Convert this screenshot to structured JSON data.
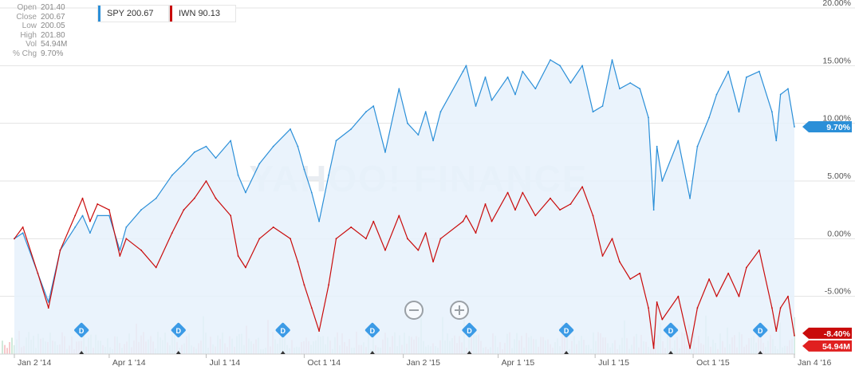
{
  "ohlc": [
    {
      "label": "Open",
      "value": "201.40"
    },
    {
      "label": "Close",
      "value": "200.67"
    },
    {
      "label": "Low",
      "value": "200.05"
    },
    {
      "label": "High",
      "value": "201.80"
    },
    {
      "label": "Vol",
      "value": "54.94M"
    },
    {
      "label": "% Chg",
      "value": "9.70%"
    }
  ],
  "legend": {
    "spy": {
      "label": "SPY 200.67",
      "color": "#2b8fd8"
    },
    "iwn": {
      "label": "IWN 90.13",
      "color": "#c90b0b"
    }
  },
  "markers": {
    "spy_last": "9.70%",
    "iwn_last": "-8.40%",
    "volume_last": "54.94M"
  },
  "event_marker_label": "D",
  "chart_data": {
    "type": "line",
    "x_labels": [
      "Jan 2 '14",
      "Apr 1 '14",
      "Jul 1 '14",
      "Oct 1 '14",
      "Jan 2 '15",
      "Apr 1 '15",
      "Jul 1 '15",
      "Oct 1 '15",
      "Jan 4 '16"
    ],
    "y_ticks": [
      "20.00%",
      "15.00%",
      "10.00%",
      "5.00%",
      "0.00%",
      "-5.00%"
    ],
    "ylim": [
      -10,
      20
    ],
    "y_unit": "% change",
    "series": [
      {
        "name": "SPY",
        "color": "#2b8fd8",
        "area": true,
        "points": [
          [
            "2014-01-02",
            0
          ],
          [
            "2014-01-10",
            0.5
          ],
          [
            "2014-01-24",
            -3
          ],
          [
            "2014-02-03",
            -5.5
          ],
          [
            "2014-02-14",
            -1
          ],
          [
            "2014-02-28",
            1
          ],
          [
            "2014-03-07",
            2
          ],
          [
            "2014-03-14",
            0.5
          ],
          [
            "2014-03-21",
            2
          ],
          [
            "2014-04-01",
            2
          ],
          [
            "2014-04-11",
            -1
          ],
          [
            "2014-04-17",
            1
          ],
          [
            "2014-05-01",
            2.5
          ],
          [
            "2014-05-15",
            3.5
          ],
          [
            "2014-05-30",
            5.5
          ],
          [
            "2014-06-10",
            6.5
          ],
          [
            "2014-06-20",
            7.5
          ],
          [
            "2014-07-01",
            8
          ],
          [
            "2014-07-10",
            7
          ],
          [
            "2014-07-24",
            8.5
          ],
          [
            "2014-07-31",
            5.5
          ],
          [
            "2014-08-07",
            4
          ],
          [
            "2014-08-20",
            6.5
          ],
          [
            "2014-09-02",
            8
          ],
          [
            "2014-09-18",
            9.5
          ],
          [
            "2014-09-25",
            8
          ],
          [
            "2014-10-01",
            6
          ],
          [
            "2014-10-08",
            4
          ],
          [
            "2014-10-15",
            1.5
          ],
          [
            "2014-10-24",
            5.5
          ],
          [
            "2014-10-31",
            8.5
          ],
          [
            "2014-11-14",
            9.5
          ],
          [
            "2014-11-28",
            11
          ],
          [
            "2014-12-05",
            11.5
          ],
          [
            "2014-12-16",
            7.5
          ],
          [
            "2014-12-29",
            13
          ],
          [
            "2015-01-06",
            10
          ],
          [
            "2015-01-16",
            9
          ],
          [
            "2015-01-23",
            11
          ],
          [
            "2015-01-30",
            8.5
          ],
          [
            "2015-02-06",
            11
          ],
          [
            "2015-02-27",
            14.5
          ],
          [
            "2015-03-02",
            15
          ],
          [
            "2015-03-11",
            11.5
          ],
          [
            "2015-03-20",
            14
          ],
          [
            "2015-03-26",
            12
          ],
          [
            "2015-04-10",
            14
          ],
          [
            "2015-04-17",
            12.5
          ],
          [
            "2015-04-24",
            14.5
          ],
          [
            "2015-05-06",
            13
          ],
          [
            "2015-05-20",
            15.5
          ],
          [
            "2015-05-29",
            15
          ],
          [
            "2015-06-08",
            13.5
          ],
          [
            "2015-06-19",
            15
          ],
          [
            "2015-06-29",
            11
          ],
          [
            "2015-07-08",
            11.5
          ],
          [
            "2015-07-17",
            15.5
          ],
          [
            "2015-07-24",
            13
          ],
          [
            "2015-08-03",
            13.5
          ],
          [
            "2015-08-12",
            13
          ],
          [
            "2015-08-20",
            10.5
          ],
          [
            "2015-08-25",
            2.5
          ],
          [
            "2015-08-28",
            8
          ],
          [
            "2015-09-02",
            5
          ],
          [
            "2015-09-17",
            8.5
          ],
          [
            "2015-09-28",
            3.5
          ],
          [
            "2015-10-05",
            8
          ],
          [
            "2015-10-16",
            10.5
          ],
          [
            "2015-10-23",
            12.5
          ],
          [
            "2015-11-03",
            14.5
          ],
          [
            "2015-11-13",
            11
          ],
          [
            "2015-11-20",
            14
          ],
          [
            "2015-12-02",
            14.5
          ],
          [
            "2015-12-14",
            11
          ],
          [
            "2015-12-18",
            8.5
          ],
          [
            "2015-12-22",
            12.5
          ],
          [
            "2015-12-29",
            13
          ],
          [
            "2016-01-04",
            9.7
          ]
        ]
      },
      {
        "name": "IWN",
        "color": "#c90b0b",
        "area": false,
        "points": [
          [
            "2014-01-02",
            0
          ],
          [
            "2014-01-10",
            1
          ],
          [
            "2014-01-24",
            -3
          ],
          [
            "2014-02-03",
            -6
          ],
          [
            "2014-02-14",
            -1
          ],
          [
            "2014-02-28",
            2
          ],
          [
            "2014-03-07",
            3.5
          ],
          [
            "2014-03-14",
            1.5
          ],
          [
            "2014-03-21",
            3
          ],
          [
            "2014-04-01",
            2.5
          ],
          [
            "2014-04-11",
            -1.5
          ],
          [
            "2014-04-17",
            0
          ],
          [
            "2014-05-01",
            -1
          ],
          [
            "2014-05-15",
            -2.5
          ],
          [
            "2014-05-30",
            0.5
          ],
          [
            "2014-06-10",
            2.5
          ],
          [
            "2014-06-20",
            3.5
          ],
          [
            "2014-07-01",
            5
          ],
          [
            "2014-07-10",
            3.5
          ],
          [
            "2014-07-24",
            2
          ],
          [
            "2014-07-31",
            -1.5
          ],
          [
            "2014-08-07",
            -2.5
          ],
          [
            "2014-08-20",
            0
          ],
          [
            "2014-09-02",
            1
          ],
          [
            "2014-09-18",
            0
          ],
          [
            "2014-09-25",
            -2
          ],
          [
            "2014-10-01",
            -4
          ],
          [
            "2014-10-08",
            -6
          ],
          [
            "2014-10-15",
            -8
          ],
          [
            "2014-10-24",
            -4
          ],
          [
            "2014-10-31",
            0
          ],
          [
            "2014-11-14",
            1
          ],
          [
            "2014-11-28",
            0
          ],
          [
            "2014-12-05",
            1.5
          ],
          [
            "2014-12-16",
            -1
          ],
          [
            "2014-12-29",
            2
          ],
          [
            "2015-01-06",
            0
          ],
          [
            "2015-01-16",
            -1
          ],
          [
            "2015-01-23",
            0.5
          ],
          [
            "2015-01-30",
            -2
          ],
          [
            "2015-02-06",
            0
          ],
          [
            "2015-02-27",
            1.5
          ],
          [
            "2015-03-02",
            2
          ],
          [
            "2015-03-11",
            0.5
          ],
          [
            "2015-03-20",
            3
          ],
          [
            "2015-03-26",
            1.5
          ],
          [
            "2015-04-10",
            4
          ],
          [
            "2015-04-17",
            2.5
          ],
          [
            "2015-04-24",
            4
          ],
          [
            "2015-05-06",
            2
          ],
          [
            "2015-05-20",
            3.5
          ],
          [
            "2015-05-29",
            2.5
          ],
          [
            "2015-06-08",
            3
          ],
          [
            "2015-06-19",
            4.5
          ],
          [
            "2015-06-29",
            2
          ],
          [
            "2015-07-08",
            -1.5
          ],
          [
            "2015-07-17",
            0
          ],
          [
            "2015-07-24",
            -2
          ],
          [
            "2015-08-03",
            -3.5
          ],
          [
            "2015-08-12",
            -3
          ],
          [
            "2015-08-20",
            -6
          ],
          [
            "2015-08-25",
            -9.5
          ],
          [
            "2015-08-28",
            -5.5
          ],
          [
            "2015-09-02",
            -7
          ],
          [
            "2015-09-17",
            -5
          ],
          [
            "2015-09-28",
            -9.5
          ],
          [
            "2015-10-05",
            -6
          ],
          [
            "2015-10-16",
            -3.5
          ],
          [
            "2015-10-23",
            -5
          ],
          [
            "2015-11-03",
            -3
          ],
          [
            "2015-11-13",
            -5
          ],
          [
            "2015-11-20",
            -2.5
          ],
          [
            "2015-12-02",
            -1
          ],
          [
            "2015-12-14",
            -6
          ],
          [
            "2015-12-18",
            -8
          ],
          [
            "2015-12-22",
            -6
          ],
          [
            "2015-12-29",
            -5
          ],
          [
            "2016-01-04",
            -8.4
          ]
        ]
      }
    ],
    "event_dates": [
      "2014-03-06",
      "2014-06-05",
      "2014-09-11",
      "2014-12-04",
      "2015-03-05",
      "2015-06-04",
      "2015-09-10",
      "2015-12-03"
    ],
    "watermark": "YAHOO! FINANCE"
  }
}
